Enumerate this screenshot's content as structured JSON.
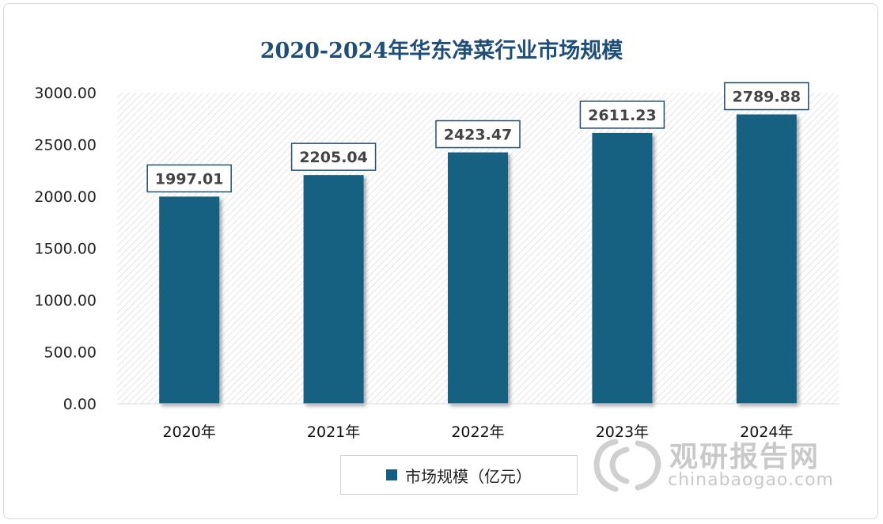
{
  "chart_data": {
    "type": "bar",
    "title": "2020-2024年华东净菜行业市场规模",
    "categories": [
      "2020年",
      "2021年",
      "2022年",
      "2023年",
      "2024年"
    ],
    "series": [
      {
        "name": "市场规模（亿元）",
        "values": [
          1997.01,
          2205.04,
          2423.47,
          2611.23,
          2789.88
        ]
      }
    ],
    "data_labels": [
      "1997.01",
      "2205.04",
      "2423.47",
      "2611.23",
      "2789.88"
    ],
    "y_ticks": [
      "0.00",
      "500.00",
      "1000.00",
      "1500.00",
      "2000.00",
      "2500.00",
      "3000.00"
    ],
    "ylim": [
      0,
      3000
    ],
    "grid": false,
    "legend_position": "bottom",
    "bar_color": "#156082",
    "plot_background": "hatched light gray"
  },
  "watermark": {
    "title": "观研报告网",
    "url": "chinabaogao.com"
  }
}
